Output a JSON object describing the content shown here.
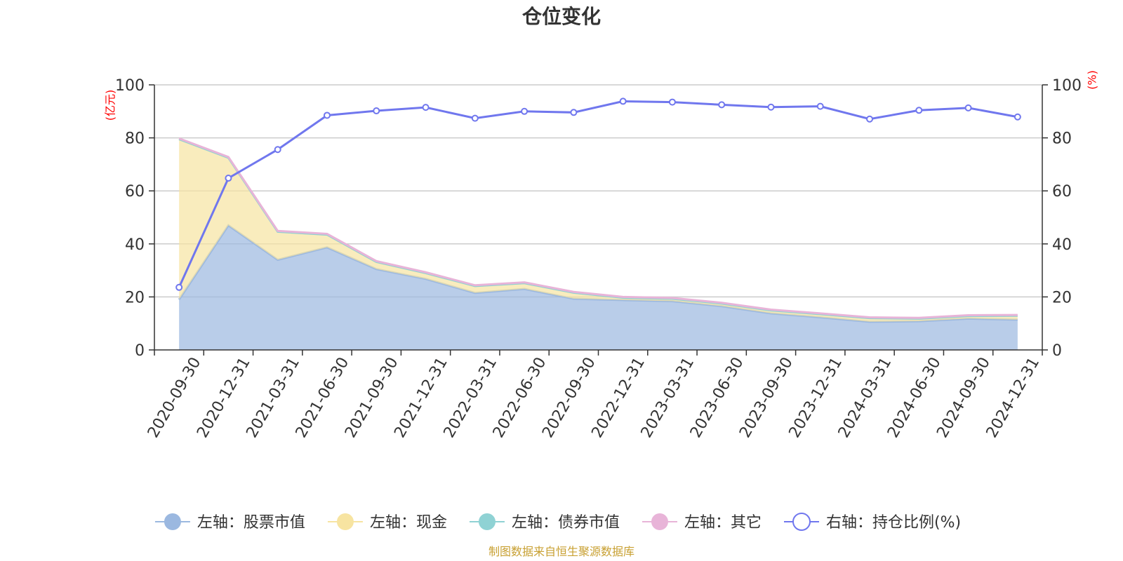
{
  "chart_data": {
    "type": "area",
    "title": "仓位变化",
    "left_unit": "(亿元)",
    "right_unit": "(%)",
    "ylim_left": [
      0,
      100
    ],
    "ylim_right": [
      0,
      100
    ],
    "yticks": [
      "0",
      "20",
      "40",
      "60",
      "80",
      "100"
    ],
    "categories": [
      "2020-09-30",
      "2020-12-31",
      "2021-03-31",
      "2021-06-30",
      "2021-09-30",
      "2021-12-31",
      "2022-03-31",
      "2022-06-30",
      "2022-09-30",
      "2022-12-31",
      "2023-03-31",
      "2023-06-30",
      "2023-09-30",
      "2023-12-31",
      "2024-03-31",
      "2024-06-30",
      "2024-09-30",
      "2024-12-31"
    ],
    "series": [
      {
        "name": "左轴：股票市值",
        "axis": "left",
        "stack": true,
        "color": "#9bb8e0",
        "values": [
          19.0,
          47.0,
          34.0,
          38.7,
          30.5,
          26.8,
          21.5,
          23.0,
          19.3,
          18.8,
          18.4,
          16.5,
          13.8,
          12.3,
          10.6,
          10.8,
          11.8,
          11.4
        ]
      },
      {
        "name": "左轴：现金",
        "axis": "left",
        "stack": true,
        "color": "#f7e4a1",
        "values": [
          60.5,
          25.5,
          10.6,
          4.8,
          2.7,
          2.2,
          2.6,
          2.2,
          2.3,
          0.9,
          0.9,
          1.0,
          1.1,
          1.2,
          1.4,
          1.0,
          1.0,
          1.5
        ]
      },
      {
        "name": "左轴：债券市值",
        "axis": "left",
        "stack": true,
        "color": "#8fd2d4",
        "values": [
          0,
          0,
          0,
          0,
          0,
          0,
          0,
          0,
          0,
          0,
          0,
          0,
          0,
          0,
          0,
          0,
          0,
          0
        ]
      },
      {
        "name": "左轴：其它",
        "axis": "left",
        "stack": true,
        "color": "#e8b4d8",
        "values": [
          0.3,
          0.3,
          0.3,
          0.3,
          0.3,
          0.3,
          0.3,
          0.3,
          0.3,
          0.3,
          0.3,
          0.3,
          0.3,
          0.3,
          0.3,
          0.3,
          0.3,
          0.3
        ]
      },
      {
        "name": "右轴：持仓比例(%)",
        "axis": "right",
        "stack": false,
        "color": "#7077ee",
        "values": [
          23.6,
          64.8,
          75.6,
          88.5,
          90.2,
          91.5,
          87.4,
          90.0,
          89.6,
          93.8,
          93.5,
          92.5,
          91.6,
          91.9,
          87.1,
          90.4,
          91.3,
          87.9
        ]
      }
    ],
    "grid": true,
    "legend_position": "bottom"
  },
  "source_note": "制图数据来自恒生聚源数据库"
}
